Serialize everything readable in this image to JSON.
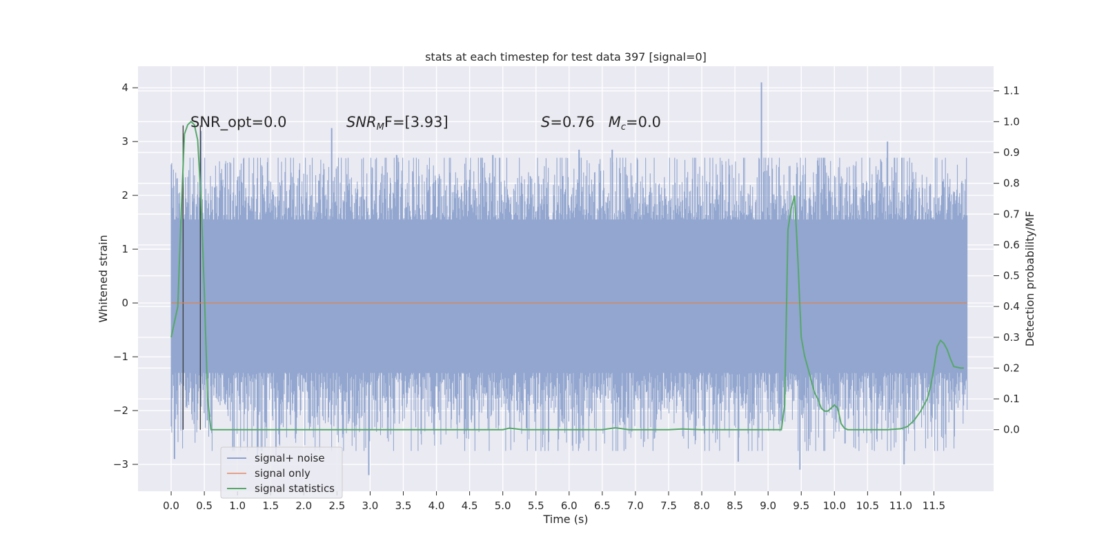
{
  "chart_data": {
    "type": "line",
    "title": "stats at each timestep for test data 397 [signal=0]",
    "xlabel": "Time (s)",
    "ylabel_left": "Whitened strain",
    "ylabel_right": "Detection probability/MF",
    "xlim": [
      -0.5,
      12.4
    ],
    "ylim_left": [
      -3.5,
      4.4
    ],
    "ylim_right": [
      -0.2,
      1.18
    ],
    "xticks": [
      0.0,
      0.5,
      1.0,
      1.5,
      2.0,
      2.5,
      3.0,
      3.5,
      4.0,
      4.5,
      5.0,
      5.5,
      6.0,
      6.5,
      7.0,
      7.5,
      8.0,
      8.5,
      9.0,
      9.5,
      10.0,
      10.5,
      11.0,
      11.5
    ],
    "xtick_labels": [
      "0.0",
      "0.5",
      "1.0",
      "1.5",
      "2.0",
      "2.5",
      "3.0",
      "3.5",
      "4.0",
      "4.5",
      "5.0",
      "5.5",
      "6.0",
      "6.5",
      "7.0",
      "7.5",
      "8.0",
      "8.5",
      "9.0",
      "9.5",
      "10.0",
      "10.5",
      "11.0",
      "11.5"
    ],
    "yticks_left": [
      -3,
      -2,
      -1,
      0,
      1,
      2,
      3,
      4
    ],
    "ytick_labels_left": [
      "−3",
      "−2",
      "−1",
      "0",
      "1",
      "2",
      "3",
      "4"
    ],
    "yticks_right": [
      0.0,
      0.1,
      0.2,
      0.3,
      0.4,
      0.5,
      0.6,
      0.7,
      0.8,
      0.9,
      1.0,
      1.1
    ],
    "ytick_labels_right": [
      "0.0",
      "0.1",
      "0.2",
      "0.3",
      "0.4",
      "0.5",
      "0.6",
      "0.7",
      "0.8",
      "0.9",
      "1.0",
      "1.1"
    ],
    "grid": true,
    "legend_position": "lower-left",
    "annotations": {
      "snr_opt": "SNR_opt=0.0",
      "snr_mf_italic": "SNR",
      "snr_mf_sub": "M",
      "snr_mf_rest": "F=[3.93]",
      "s_italic": "S",
      "s_rest": "=0.76   ",
      "mc_italic": "M",
      "mc_sub": "c",
      "mc_rest": "=0.0"
    },
    "legend": [
      {
        "label": "signal+ noise",
        "color": "#8da0cb"
      },
      {
        "label": "signal only",
        "color": "#e3a089"
      },
      {
        "label": "signal statistics",
        "color": "#55a868"
      }
    ],
    "series": [
      {
        "name": "signal+ noise",
        "axis": "left",
        "color": "#92a6cf",
        "time_range": [
          0.0,
          12.0
        ],
        "body_band": [
          -1.0,
          1.0
        ],
        "dense_band": [
          -1.3,
          1.55
        ],
        "noise_sigma": 0.75,
        "peaks": [
          {
            "x": 8.9,
            "y": 4.1
          },
          {
            "x": 2.42,
            "y": 3.25
          },
          {
            "x": 0.45,
            "y": 3.2
          },
          {
            "x": 10.8,
            "y": 3.0
          },
          {
            "x": 9.75,
            "y": 2.65
          },
          {
            "x": 3.4,
            "y": 2.75
          },
          {
            "x": 4.85,
            "y": 2.75
          },
          {
            "x": 6.15,
            "y": 2.85
          },
          {
            "x": 6.65,
            "y": 2.85
          }
        ],
        "troughs": [
          {
            "x": 0.05,
            "y": -2.9
          },
          {
            "x": 1.3,
            "y": -2.95
          },
          {
            "x": 2.98,
            "y": -3.2
          },
          {
            "x": 9.48,
            "y": -3.1
          },
          {
            "x": 11.05,
            "y": -3.0
          },
          {
            "x": 1.58,
            "y": -2.85
          },
          {
            "x": 8.55,
            "y": -2.95
          }
        ]
      },
      {
        "name": "signal only",
        "axis": "left",
        "color": "#dd8452",
        "x": [
          0.0,
          12.0
        ],
        "y": [
          0.0,
          0.0
        ]
      },
      {
        "name": "signal statistics",
        "axis": "right",
        "color": "#55a868",
        "x": [
          0.0,
          0.05,
          0.1,
          0.15,
          0.2,
          0.25,
          0.3,
          0.35,
          0.4,
          0.45,
          0.5,
          0.55,
          0.6,
          0.65,
          0.7,
          0.8,
          1.0,
          2.0,
          2.5,
          3.0,
          3.5,
          4.0,
          5.0,
          5.1,
          5.3,
          6.0,
          6.5,
          6.7,
          6.9,
          7.5,
          7.7,
          8.0,
          9.0,
          9.2,
          9.25,
          9.3,
          9.35,
          9.4,
          9.45,
          9.5,
          9.55,
          9.6,
          9.65,
          9.7,
          9.75,
          9.8,
          9.85,
          9.9,
          10.0,
          10.05,
          10.1,
          10.15,
          10.2,
          10.3,
          10.5,
          10.8,
          11.0,
          11.1,
          11.2,
          11.3,
          11.4,
          11.45,
          11.5,
          11.55,
          11.6,
          11.65,
          11.7,
          11.75,
          11.8,
          11.9,
          11.95
        ],
        "y": [
          0.3,
          0.35,
          0.4,
          0.7,
          0.96,
          0.99,
          1.0,
          0.99,
          0.94,
          0.75,
          0.45,
          0.1,
          0.0,
          0.0,
          0.0,
          0.0,
          0.0,
          0.0,
          0.0,
          0.0,
          0.0,
          0.0,
          0.0,
          0.005,
          0.0,
          0.0,
          0.0,
          0.006,
          0.0,
          0.0,
          0.002,
          0.0,
          0.0,
          0.0,
          0.08,
          0.65,
          0.72,
          0.76,
          0.55,
          0.3,
          0.24,
          0.2,
          0.16,
          0.12,
          0.1,
          0.07,
          0.06,
          0.06,
          0.08,
          0.07,
          0.02,
          0.005,
          0.0,
          0.0,
          0.0,
          0.0,
          0.003,
          0.01,
          0.03,
          0.06,
          0.1,
          0.14,
          0.2,
          0.27,
          0.29,
          0.28,
          0.26,
          0.23,
          0.205,
          0.2,
          0.2
        ]
      }
    ],
    "marker_lines": [
      0.18,
      0.44
    ]
  }
}
